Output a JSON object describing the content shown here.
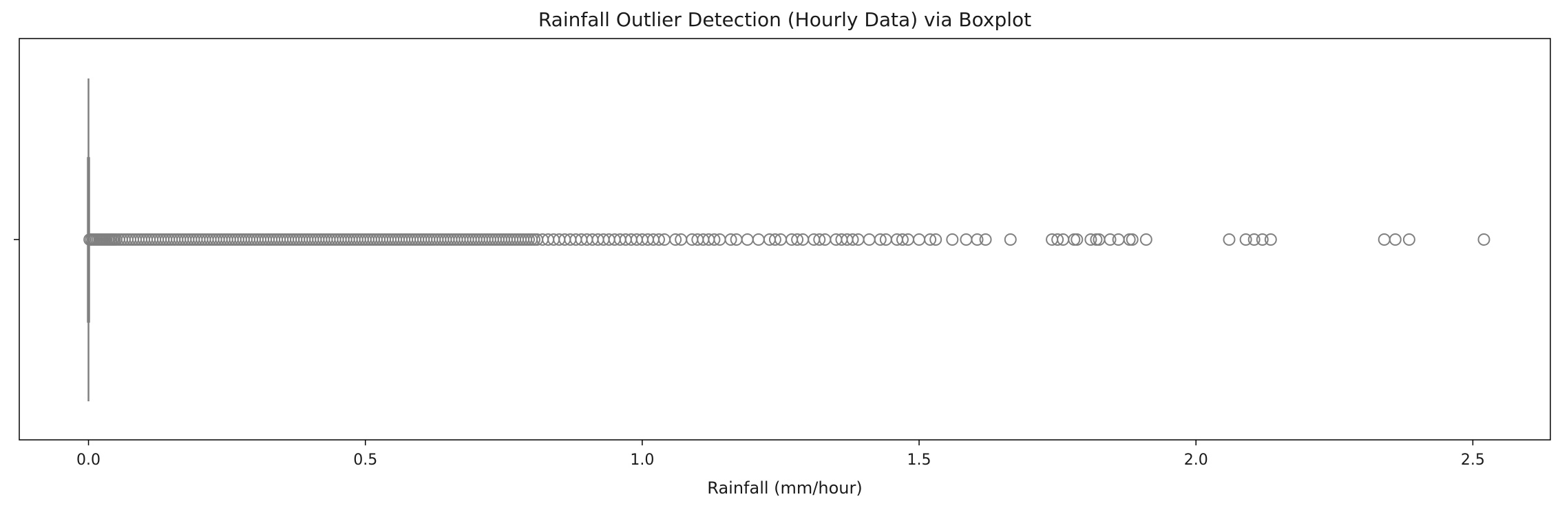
{
  "chart_data": {
    "type": "box",
    "orientation": "horizontal",
    "title": "Rainfall Outlier Detection (Hourly Data) via Boxplot",
    "xlabel": "Rainfall (mm/hour)",
    "ylabel": "",
    "xlim": [
      -0.125,
      2.64
    ],
    "xticks": [
      0.0,
      0.5,
      1.0,
      1.5,
      2.0,
      2.5
    ],
    "xtick_labels": [
      "0.0",
      "0.5",
      "1.0",
      "1.5",
      "2.0",
      "2.5"
    ],
    "grid": false,
    "colors": {
      "box": "#808080",
      "frame": "#000000",
      "background": "#ffffff"
    },
    "box": {
      "whisker_low": 0.0,
      "q1": 0.0,
      "median": 0.0,
      "q3": 0.0,
      "whisker_high": 0.0
    },
    "outliers": [
      0.002,
      0.005,
      0.008,
      0.011,
      0.014,
      0.017,
      0.02,
      0.023,
      0.026,
      0.029,
      0.032,
      0.035,
      0.038,
      0.041,
      0.044,
      0.047,
      0.05,
      0.055,
      0.06,
      0.065,
      0.07,
      0.075,
      0.08,
      0.085,
      0.09,
      0.095,
      0.1,
      0.105,
      0.11,
      0.115,
      0.12,
      0.125,
      0.13,
      0.135,
      0.14,
      0.145,
      0.15,
      0.155,
      0.16,
      0.165,
      0.17,
      0.175,
      0.18,
      0.185,
      0.19,
      0.195,
      0.2,
      0.205,
      0.21,
      0.215,
      0.22,
      0.225,
      0.23,
      0.235,
      0.24,
      0.245,
      0.25,
      0.255,
      0.26,
      0.265,
      0.27,
      0.275,
      0.28,
      0.285,
      0.29,
      0.295,
      0.3,
      0.305,
      0.31,
      0.315,
      0.32,
      0.325,
      0.33,
      0.335,
      0.34,
      0.345,
      0.35,
      0.355,
      0.36,
      0.365,
      0.37,
      0.375,
      0.38,
      0.385,
      0.39,
      0.395,
      0.4,
      0.405,
      0.41,
      0.415,
      0.42,
      0.425,
      0.43,
      0.435,
      0.44,
      0.445,
      0.45,
      0.455,
      0.46,
      0.465,
      0.47,
      0.475,
      0.48,
      0.485,
      0.49,
      0.495,
      0.5,
      0.505,
      0.51,
      0.515,
      0.52,
      0.525,
      0.53,
      0.535,
      0.54,
      0.545,
      0.55,
      0.555,
      0.56,
      0.565,
      0.57,
      0.575,
      0.58,
      0.585,
      0.59,
      0.595,
      0.6,
      0.605,
      0.61,
      0.615,
      0.62,
      0.625,
      0.63,
      0.635,
      0.64,
      0.645,
      0.65,
      0.655,
      0.66,
      0.665,
      0.67,
      0.675,
      0.68,
      0.685,
      0.69,
      0.695,
      0.7,
      0.705,
      0.71,
      0.715,
      0.72,
      0.725,
      0.73,
      0.735,
      0.74,
      0.745,
      0.75,
      0.755,
      0.76,
      0.765,
      0.77,
      0.775,
      0.78,
      0.785,
      0.79,
      0.795,
      0.8,
      0.805,
      0.81,
      0.82,
      0.83,
      0.84,
      0.85,
      0.86,
      0.87,
      0.88,
      0.89,
      0.9,
      0.91,
      0.92,
      0.93,
      0.94,
      0.95,
      0.96,
      0.97,
      0.98,
      0.99,
      1.0,
      1.01,
      1.02,
      1.03,
      1.04,
      1.06,
      1.07,
      1.09,
      1.1,
      1.11,
      1.12,
      1.13,
      1.14,
      1.16,
      1.17,
      1.19,
      1.21,
      1.23,
      1.24,
      1.25,
      1.27,
      1.28,
      1.29,
      1.31,
      1.32,
      1.33,
      1.35,
      1.36,
      1.37,
      1.38,
      1.39,
      1.41,
      1.43,
      1.44,
      1.46,
      1.47,
      1.48,
      1.5,
      1.52,
      1.53,
      1.56,
      1.585,
      1.605,
      1.62,
      1.665,
      1.74,
      1.75,
      1.76,
      1.78,
      1.785,
      1.81,
      1.82,
      1.825,
      1.845,
      1.86,
      1.88,
      1.885,
      1.91,
      2.06,
      2.09,
      2.105,
      2.12,
      2.135,
      2.34,
      2.36,
      2.385,
      2.52
    ]
  }
}
